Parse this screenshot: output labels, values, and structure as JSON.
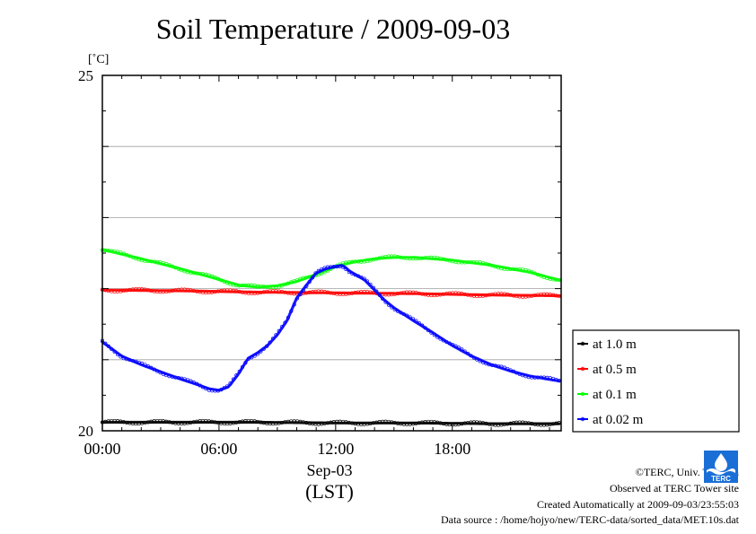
{
  "title": "Soil Temperature / 2009-09-03",
  "chart_data": {
    "type": "scatter",
    "title": "Soil Temperature / 2009-09-03",
    "ylabel": "[˚C]",
    "ylim": [
      20,
      25
    ],
    "xlim": [
      0,
      23.6
    ],
    "y_ticks": [
      20,
      25
    ],
    "y_grid": [
      21,
      22,
      23,
      24
    ],
    "x_tick_labels": [
      {
        "hour": 0,
        "label": "00:00"
      },
      {
        "hour": 6,
        "label": "06:00"
      },
      {
        "hour": 12,
        "label": "12:00"
      },
      {
        "hour": 18,
        "label": "18:00"
      }
    ],
    "date_label": "Sep-03",
    "tz_label": "(LST)",
    "legend_position": "right",
    "series": [
      {
        "name": "at 1.0 m",
        "color": "#000000",
        "x": [
          0,
          4,
          8,
          12,
          16,
          20,
          23.5
        ],
        "y": [
          20.12,
          20.12,
          20.12,
          20.11,
          20.11,
          20.1,
          20.1
        ]
      },
      {
        "name": "at 0.5 m",
        "color": "#ff0000",
        "x": [
          0,
          4,
          8,
          12,
          16,
          20,
          23.5
        ],
        "y": [
          21.98,
          21.97,
          21.95,
          21.94,
          21.93,
          21.91,
          21.9
        ]
      },
      {
        "name": "at 0.1 m",
        "color": "#00ff00",
        "x": [
          0,
          2,
          4,
          6,
          7,
          8,
          9,
          10,
          11,
          12,
          13,
          14,
          15,
          16,
          18,
          20,
          22,
          23.5
        ],
        "y": [
          22.55,
          22.42,
          22.28,
          22.13,
          22.05,
          22.02,
          22.04,
          22.1,
          22.2,
          22.31,
          22.38,
          22.42,
          22.44,
          22.44,
          22.4,
          22.33,
          22.23,
          22.12
        ]
      },
      {
        "name": "at 0.02 m",
        "color": "#0000ff",
        "x": [
          0,
          1,
          2,
          3,
          4,
          5,
          5.5,
          6,
          6.5,
          7,
          7.5,
          8,
          8.5,
          9,
          9.5,
          10,
          10.5,
          11,
          11.5,
          12,
          12.3,
          12.5,
          12.7,
          13,
          13.5,
          14,
          14.5,
          15,
          16,
          17,
          18,
          19,
          20,
          21,
          22,
          23.5
        ],
        "y": [
          21.25,
          21.05,
          20.93,
          20.83,
          20.73,
          20.64,
          20.59,
          20.57,
          20.62,
          20.8,
          21.02,
          21.1,
          21.2,
          21.35,
          21.55,
          21.87,
          22.05,
          22.22,
          22.28,
          22.31,
          22.33,
          22.3,
          22.25,
          22.2,
          22.12,
          21.98,
          21.84,
          21.73,
          21.55,
          21.38,
          21.2,
          21.05,
          20.93,
          20.84,
          20.77,
          20.7
        ]
      }
    ]
  },
  "credits": {
    "copyright": "©TERC, Univ. Tsukuba",
    "observed": "Observed at TERC Tower site",
    "created": "Created Automatically at 2009-09-03/23:55:03",
    "source": "Data source : /home/hojyo/new/TERC-data/sorted_data/MET.10s.dat"
  },
  "logo": {
    "text": "TERC",
    "color": "#1a6fd6"
  }
}
